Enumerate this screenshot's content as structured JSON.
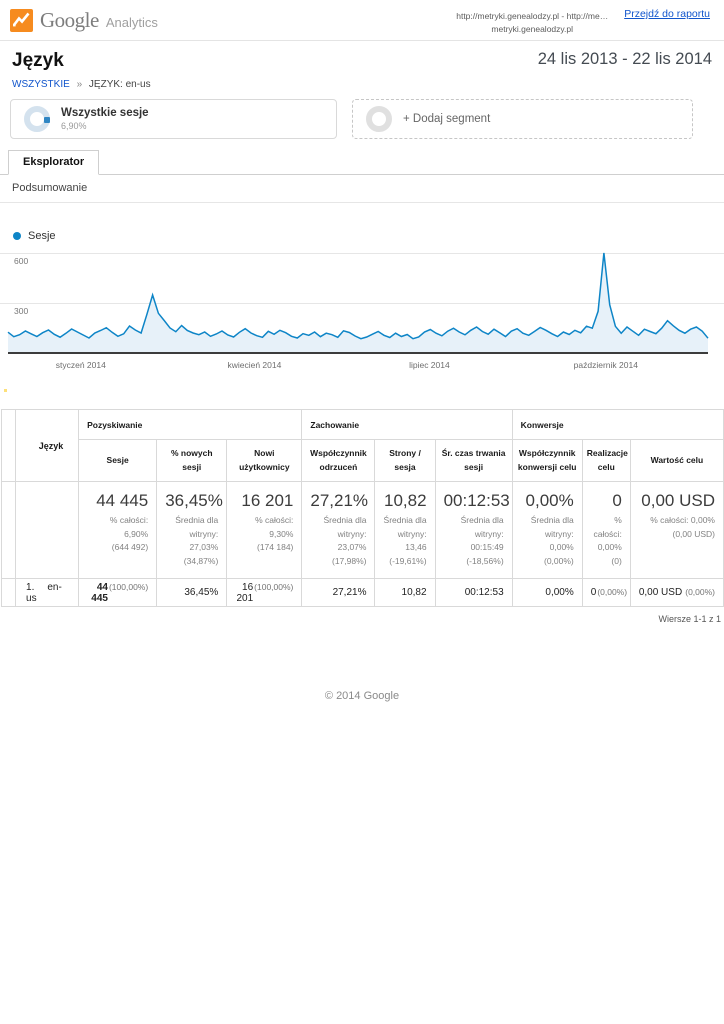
{
  "header": {
    "brand": "Google",
    "product": "Analytics",
    "brand_color": "#f68b1f",
    "source_line1": "http://metryki.genealodzy.pl - http://me…",
    "source_line2": "metryki.genealodzy.pl",
    "report_link": "Przejdź do raportu"
  },
  "report": {
    "title": "Język",
    "date_range": "24 lis 2013 - 22 lis 2014",
    "breadcrumb_all": "WSZYSTKIE",
    "breadcrumb_sep": "»",
    "breadcrumb_current": "JĘZYK: en-us"
  },
  "segments": {
    "active_label": "Wszystkie sesje",
    "active_pct": "6,90%",
    "add_label": "+ Dodaj segment"
  },
  "tabs": {
    "explorer": "Eksplorator",
    "subtab": "Podsumowanie"
  },
  "chart_data": {
    "type": "line",
    "title": "",
    "legend": [
      "Sesje"
    ],
    "legend_position": "top-left",
    "grid": true,
    "line_color": "#0e85c7",
    "fill_color": "#e7f1f9",
    "ylim": [
      0,
      600
    ],
    "y_ticks": [
      300,
      600
    ],
    "y_tick_labels": [
      "600",
      "300"
    ],
    "x_tick_labels": [
      "styczeń 2014",
      "kwiecień 2014",
      "lipiec 2014",
      "październik 2014"
    ],
    "x_tick_positions": [
      0.104,
      0.352,
      0.602,
      0.854
    ],
    "series": [
      {
        "name": "Sesje",
        "values": [
          125,
          98,
          110,
          132,
          115,
          99,
          122,
          138,
          112,
          95,
          118,
          144,
          126,
          108,
          90,
          120,
          135,
          152,
          124,
          100,
          115,
          162,
          138,
          120,
          230,
          348,
          238,
          195,
          150,
          128,
          165,
          135,
          120,
          110,
          126,
          100,
          114,
          132,
          108,
          96,
          124,
          146,
          120,
          104,
          94,
          130,
          112,
          136,
          122,
          100,
          90,
          116,
          106,
          126,
          98,
          119,
          110,
          94,
          133,
          123,
          102,
          86,
          96,
          113,
          129,
          106,
          93,
          119,
          99,
          111,
          86,
          96,
          126,
          141,
          119,
          103,
          131,
          149,
          126,
          109,
          136,
          156,
          129,
          113,
          143,
          121,
          99,
          131,
          146,
          119,
          106,
          129,
          153,
          136,
          116,
          99,
          126,
          111,
          136,
          121,
          161,
          149,
          250,
          600,
          290,
          160,
          119,
          156,
          131,
          106,
          143,
          129,
          116,
          149,
          194,
          163,
          136,
          119,
          143,
          156,
          131,
          89
        ]
      }
    ]
  },
  "table": {
    "dimension_header": "Język",
    "groups": [
      {
        "label": "Pozyskiwanie",
        "cols": [
          "Sesje",
          "% nowych sesji",
          "Nowi użytkownicy"
        ]
      },
      {
        "label": "Zachowanie",
        "cols": [
          "Współczynnik odrzuceń",
          "Strony / sesja",
          "Śr. czas trwania sesji"
        ]
      },
      {
        "label": "Konwersje",
        "cols": [
          "Współczynnik konwersji celu",
          "Realizacje celu",
          "Wartość celu"
        ]
      }
    ],
    "summary": [
      {
        "value": "44 445",
        "sub": "% całości: 6,90%\n(644 492)"
      },
      {
        "value": "36,45%",
        "sub": "Średnia dla\nwitryny: 27,03%\n(34,87%)"
      },
      {
        "value": "16 201",
        "sub": "% całości: 9,30%\n(174 184)"
      },
      {
        "value": "27,21%",
        "sub": "Średnia dla\nwitryny: 23,07%\n(17,98%)"
      },
      {
        "value": "10,82",
        "sub": "Średnia dla\nwitryny: 13,46\n(-19,61%)"
      },
      {
        "value": "00:12:53",
        "sub": "Średnia dla\nwitryny: 00:15:49\n(-18,56%)"
      },
      {
        "value": "0,00%",
        "sub": "Średnia dla\nwitryny: 0,00%\n(0,00%)"
      },
      {
        "value": "0",
        "sub": "% całości:\n0,00% (0)"
      },
      {
        "value": "0,00 USD",
        "sub": "% całości: 0,00%\n(0,00 USD)"
      }
    ],
    "rows": [
      {
        "index": "1.",
        "language": "en-us",
        "cells": [
          {
            "main": "44 445",
            "paren": "(100,00%)"
          },
          {
            "main": "36,45%"
          },
          {
            "main": "16 201",
            "paren": "(100,00%)"
          },
          {
            "main": "27,21%"
          },
          {
            "main": "10,82"
          },
          {
            "main": "00:12:53"
          },
          {
            "main": "0,00%"
          },
          {
            "main": "0",
            "paren": "(0,00%)"
          },
          {
            "main": "0,00 USD",
            "paren": "(0,00%)"
          }
        ]
      }
    ],
    "rows_info": "Wiersze 1-1 z 1"
  },
  "footer": "© 2014 Google"
}
